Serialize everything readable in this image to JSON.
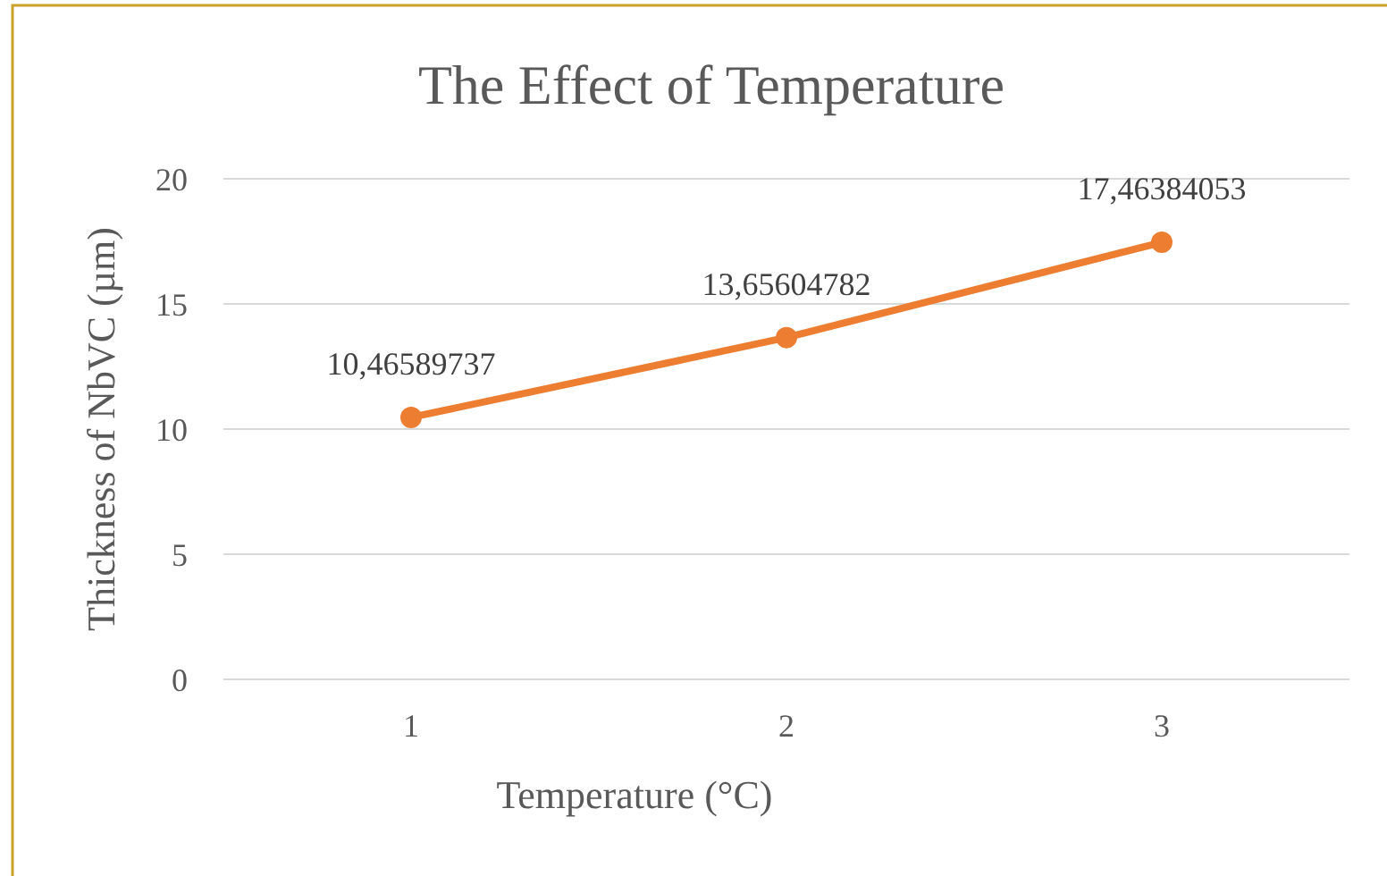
{
  "chart_data": {
    "type": "line",
    "title": "The Effect of Temperature",
    "xlabel": "Temperature (°C)",
    "ylabel": "Thickness of NbVC (µm)",
    "categories": [
      "1",
      "2",
      "3"
    ],
    "series": [
      {
        "color": "#ed7d31",
        "values": [
          10.46589737,
          13.65604782,
          17.46384053
        ],
        "value_labels": [
          "10,46589737",
          "13,65604782",
          "17,46384053"
        ]
      }
    ],
    "ylim": [
      0,
      20
    ],
    "yticks": [
      0,
      5,
      10,
      15,
      20
    ],
    "grid": "y",
    "marker": "circle",
    "line_style": "solid"
  }
}
